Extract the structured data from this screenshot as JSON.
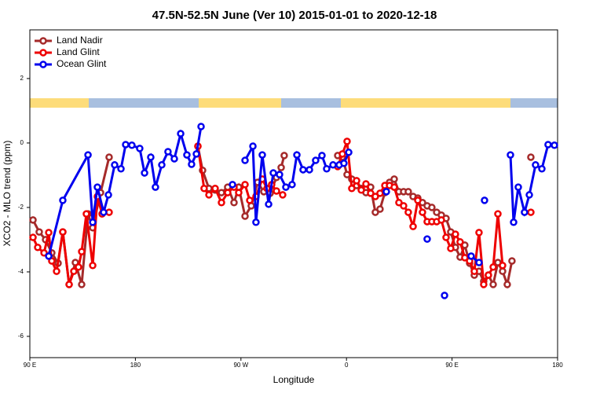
{
  "chart_data": {
    "type": "line",
    "title": "47.5N-52.5N June (Ver 10)   2015-01-01 to 2020-12-18",
    "x_label": "Longitude",
    "y_label": "XCO2 - MLO trend (ppm)",
    "xlim": [
      90,
      540
    ],
    "ylim": [
      -6.66,
      3.51
    ],
    "xticks": [
      {
        "value": 90,
        "label": "90 E"
      },
      180,
      {
        "value": 270,
        "label": "90 W"
      },
      {
        "value": 360,
        "label": "0"
      },
      {
        "value": 450,
        "label": "90 E"
      },
      {
        "value": 540,
        "label": "180"
      }
    ],
    "yticks": [
      -6,
      -4,
      -2,
      0,
      2
    ],
    "legend": "top-left",
    "series": [
      {
        "name": "Land Nadir",
        "color": "#a52a2a",
        "x": [
          92.7,
          98.0,
          103.4,
          108.7,
          114.1,
          118.1,
          123.5,
          128.8,
          134.2,
          139.6,
          143.6,
          150.3,
          157.6,
          null,
          233.3,
          237.3,
          242.7,
          248.0,
          253.4,
          258.7,
          264.1,
          268.1,
          273.5,
          278.8,
          284.2,
          289.5,
          294.9,
          300.3,
          304.3,
          306.9,
          null,
          352.5,
          356.5,
          360.5,
          364.5,
          368.6,
          372.6,
          376.6,
          380.6,
          384.6,
          388.6,
          392.7,
          396.7,
          400.7,
          404.7,
          408.7,
          412.7,
          416.8,
          420.8,
          424.8,
          428.8,
          432.8,
          436.9,
          440.9,
          444.9,
          448.9,
          452.9,
          456.9,
          460.9,
          465.0,
          469.0,
          473.0,
          477.0,
          481.0,
          485.1,
          489.1,
          493.1,
          497.1,
          501.1,
          null,
          517.2
        ],
        "values": [
          -2.39,
          -2.76,
          -3.0,
          -3.41,
          -3.73,
          -2.76,
          -4.39,
          -3.71,
          -4.39,
          -2.2,
          -2.63,
          -1.54,
          -0.44,
          null,
          -0.1,
          -0.85,
          -1.41,
          -1.46,
          -1.54,
          -1.37,
          -1.85,
          -1.37,
          -2.27,
          -1.95,
          -1.22,
          -1.51,
          -1.56,
          -1.07,
          -0.76,
          -0.39,
          null,
          -0.39,
          -0.44,
          -0.98,
          -1.12,
          -1.32,
          -1.41,
          -1.54,
          -1.37,
          -2.15,
          -2.05,
          -1.54,
          -1.22,
          -1.12,
          -1.51,
          -1.51,
          -1.51,
          -1.66,
          -1.71,
          -1.85,
          -1.95,
          -2.0,
          -2.15,
          -2.24,
          -2.34,
          -2.76,
          -3.24,
          -3.54,
          -3.17,
          -3.73,
          -4.1,
          -3.98,
          -4.29,
          -4.1,
          -4.39,
          -3.71,
          -3.98,
          -4.39,
          -3.66,
          null,
          -0.44
        ]
      },
      {
        "name": "Land Glint",
        "color": "#ee0000",
        "x": [
          92.7,
          96.7,
          102.1,
          106.1,
          108.7,
          112.8,
          118.1,
          123.5,
          127.5,
          131.5,
          134.2,
          138.2,
          143.6,
          147.6,
          151.6,
          157.6,
          null,
          233.3,
          238.6,
          242.7,
          248.0,
          253.4,
          258.7,
          264.1,
          268.1,
          273.5,
          277.5,
          282.8,
          288.2,
          292.2,
          296.2,
          300.3,
          305.6,
          null,
          352.5,
          356.5,
          360.5,
          364.5,
          368.6,
          372.6,
          376.6,
          380.6,
          384.6,
          388.6,
          392.7,
          396.7,
          400.7,
          404.7,
          408.7,
          412.7,
          416.8,
          420.8,
          424.8,
          428.8,
          432.8,
          436.9,
          440.9,
          444.9,
          448.9,
          452.9,
          456.9,
          460.9,
          465.0,
          469.0,
          473.0,
          477.0,
          481.0,
          485.1,
          489.1,
          493.1,
          null,
          517.2
        ],
        "values": [
          -2.93,
          -3.24,
          -3.41,
          -2.78,
          -3.66,
          -3.98,
          -2.76,
          -4.39,
          -3.98,
          -3.85,
          -3.37,
          -2.2,
          -3.8,
          -1.66,
          -2.2,
          -2.15,
          null,
          -0.1,
          -1.41,
          -1.61,
          -1.41,
          -1.85,
          -1.54,
          -1.37,
          -1.54,
          -1.29,
          -1.78,
          -1.66,
          -1.12,
          -1.41,
          -1.29,
          -1.49,
          -1.61,
          null,
          -0.73,
          -0.34,
          0.05,
          -1.41,
          -1.17,
          -1.46,
          -1.27,
          -1.56,
          -1.66,
          -1.56,
          -1.32,
          -1.32,
          -1.37,
          -1.85,
          -1.95,
          -2.15,
          -2.59,
          -1.78,
          -2.15,
          -2.44,
          -2.44,
          -2.44,
          -2.39,
          -2.93,
          -3.27,
          -2.83,
          -3.07,
          -3.56,
          -3.66,
          -3.98,
          -2.78,
          -4.39,
          -4.1,
          -3.85,
          -2.2,
          -3.8,
          null,
          -2.15
        ]
      },
      {
        "name": "Ocean Glint",
        "color": "#0000ee",
        "x": [
          106.1,
          118.1,
          139.6,
          143.6,
          147.6,
          152.9,
          157.0,
          162.3,
          167.7,
          171.7,
          177.0,
          183.7,
          187.8,
          193.1,
          197.1,
          202.5,
          207.8,
          213.2,
          218.6,
          223.9,
          227.9,
          232.0,
          236.0,
          null,
          262.8,
          null,
          273.5,
          280.2,
          282.8,
          288.2,
          293.6,
          297.6,
          302.9,
          308.3,
          313.6,
          317.7,
          323.0,
          328.4,
          333.7,
          339.1,
          343.1,
          348.5,
          353.8,
          357.8,
          361.9,
          null,
          394.0,
          null,
          428.8,
          null,
          443.6,
          null,
          466.3,
          473.0,
          null,
          477.7,
          null,
          499.8,
          502.5,
          506.5,
          511.8,
          515.9,
          521.2,
          526.6,
          531.9,
          537.3
        ],
        "values": [
          -3.51,
          -1.78,
          -0.37,
          -2.46,
          -1.37,
          -2.15,
          -1.61,
          -0.68,
          -0.8,
          -0.05,
          -0.07,
          -0.17,
          -0.93,
          -0.44,
          -1.37,
          -0.68,
          -0.27,
          -0.49,
          0.29,
          -0.37,
          -0.66,
          -0.34,
          0.51,
          null,
          -1.29,
          null,
          -0.54,
          -0.1,
          -2.46,
          -0.37,
          -1.9,
          -0.93,
          -0.98,
          -1.37,
          -1.29,
          -0.37,
          -0.83,
          -0.83,
          -0.54,
          -0.39,
          -0.8,
          -0.68,
          -0.68,
          -0.63,
          -0.29,
          null,
          -1.51,
          null,
          -2.98,
          null,
          -4.73,
          null,
          -3.51,
          -3.71,
          null,
          -1.78,
          null,
          -0.37,
          -2.46,
          -1.37,
          -2.15,
          -1.61,
          -0.68,
          -0.8,
          -0.05,
          -0.07
        ]
      }
    ]
  }
}
